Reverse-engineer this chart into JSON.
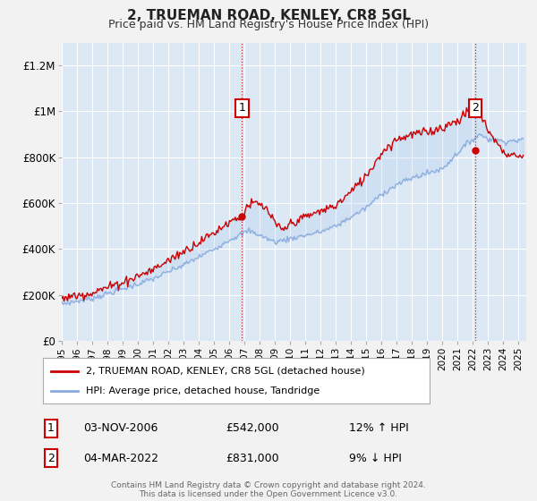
{
  "title": "2, TRUEMAN ROAD, KENLEY, CR8 5GL",
  "subtitle": "Price paid vs. HM Land Registry's House Price Index (HPI)",
  "hpi_label": "HPI: Average price, detached house, Tandridge",
  "price_label": "2, TRUEMAN ROAD, KENLEY, CR8 5GL (detached house)",
  "footer": "Contains HM Land Registry data © Crown copyright and database right 2024.\nThis data is licensed under the Open Government Licence v3.0.",
  "sale1": {
    "label": "1",
    "date": "03-NOV-2006",
    "price": "£542,000",
    "hpi": "12% ↑ HPI",
    "x_year": 2006.84
  },
  "sale2": {
    "label": "2",
    "date": "04-MAR-2022",
    "price": "£831,000",
    "hpi": "9% ↓ HPI",
    "x_year": 2022.17
  },
  "sale1_y": 542000,
  "sale2_y": 831000,
  "ylim": [
    0,
    1300000
  ],
  "xlim": [
    1995,
    2025.5
  ],
  "yticks": [
    0,
    200000,
    400000,
    600000,
    800000,
    1000000,
    1200000
  ],
  "ytick_labels": [
    "£0",
    "£200K",
    "£400K",
    "£600K",
    "£800K",
    "£1M",
    "£1.2M"
  ],
  "plot_bg": "#dce9f5",
  "fig_bg": "#f2f2f2",
  "price_color": "#cc0000",
  "hpi_color": "#88aadd",
  "grid_color": "#ffffff",
  "sale_vline_color": "#cc0000"
}
